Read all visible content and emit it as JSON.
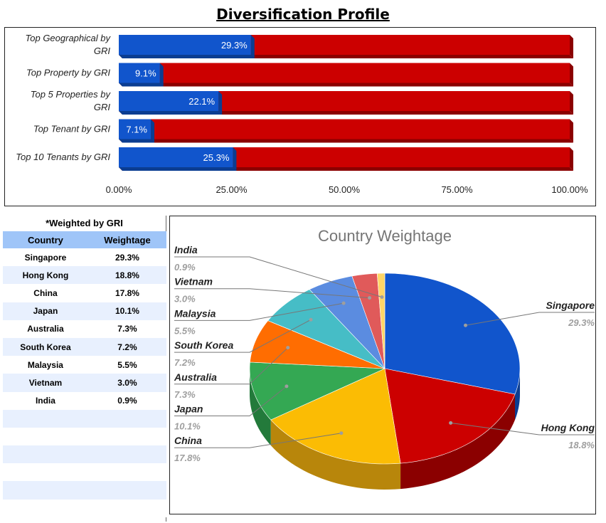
{
  "page_title": "Diversification Profile",
  "chart_data": [
    {
      "type": "bar",
      "stacked": true,
      "orientation": "horizontal",
      "categories": [
        "Top Geographical by GRI",
        "Top Property by GRI",
        "Top 5 Properties by GRI",
        "Top Tenant by GRI",
        "Top 10 Tenants by GRI"
      ],
      "category_lines": [
        [
          "Top Geographical by",
          "GRI"
        ],
        [
          "Top Property by GRI"
        ],
        [
          "Top 5 Properties by",
          "GRI"
        ],
        [
          "Top Tenant by GRI"
        ],
        [
          "Top 10 Tenants by GRI"
        ]
      ],
      "values": [
        29.3,
        9.1,
        22.1,
        7.1,
        25.3
      ],
      "value_labels": [
        "29.3%",
        "9.1%",
        "22.1%",
        "7.1%",
        "25.3%"
      ],
      "xlim": [
        0,
        100
      ],
      "x_ticks": [
        "0.00%",
        "25.00%",
        "50.00%",
        "75.00%",
        "100.00%"
      ],
      "colors": {
        "value": "#1155cc",
        "value_side": "#0b3d91",
        "rest": "#cc0000",
        "rest_side": "#8b0000"
      }
    },
    {
      "type": "pie",
      "title": "Country Weightage",
      "style": "3d",
      "categories": [
        "Singapore",
        "Hong Kong",
        "China",
        "Japan",
        "Australia",
        "South Korea",
        "Malaysia",
        "Vietnam",
        "India"
      ],
      "values": [
        29.3,
        18.8,
        17.8,
        10.1,
        7.3,
        7.2,
        5.5,
        3.0,
        0.9
      ],
      "value_labels": [
        "29.3%",
        "18.8%",
        "17.8%",
        "10.1%",
        "7.3%",
        "7.2%",
        "5.5%",
        "3.0%",
        "0.9%"
      ],
      "colors": [
        "#1155cc",
        "#cc0000",
        "#fbbc04",
        "#34a853",
        "#ff6d01",
        "#46bdc6",
        "#5b8ce0",
        "#e05a5a",
        "#ffd666"
      ],
      "side_colors": [
        "#0b3d91",
        "#8b0000",
        "#b8860b",
        "#237a3b",
        "#b34c00",
        "#2f8a91",
        "#3a63a8",
        "#a33b3b",
        "#c9a43f"
      ]
    }
  ],
  "weights_table": {
    "title": "*Weighted by GRI",
    "headers": [
      "Country",
      "Weightage"
    ],
    "rows": [
      [
        "Singapore",
        "29.3%"
      ],
      [
        "Hong Kong",
        "18.8%"
      ],
      [
        "China",
        "17.8%"
      ],
      [
        "Japan",
        "10.1%"
      ],
      [
        "Australia",
        "7.3%"
      ],
      [
        "South Korea",
        "7.2%"
      ],
      [
        "Malaysia",
        "5.5%"
      ],
      [
        "Vietnam",
        "3.0%"
      ],
      [
        "India",
        "0.9%"
      ],
      [
        "",
        ""
      ],
      [
        "",
        ""
      ],
      [
        "",
        ""
      ],
      [
        "",
        ""
      ],
      [
        "",
        ""
      ],
      [
        "",
        ""
      ]
    ]
  }
}
